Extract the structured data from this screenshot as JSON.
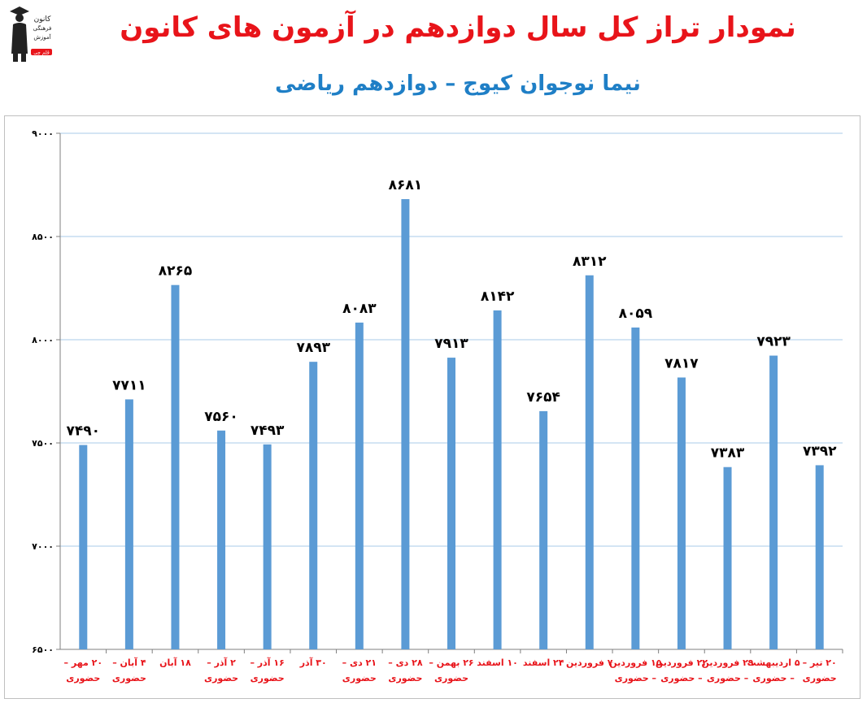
{
  "header": {
    "title": "نمودار تراز کل سال دوازدهم در آزمون های کانون",
    "subtitle": "نیما نوجوان کیوج – دوازدهم ریاضی"
  },
  "logo": {
    "icon": "graduate-figure-icon",
    "lines": [
      "کانون",
      "فرهنگی",
      "آموزش",
      "قلم چی"
    ]
  },
  "colors": {
    "title": "#e8141a",
    "subtitle": "#1f7fc6",
    "bar": "#5b9bd5",
    "category_label": "#e8141a",
    "gridline": "#a9cbe8",
    "axis": "#7f7f7f",
    "value_label": "#000000"
  },
  "chart_data": {
    "type": "bar",
    "title": "",
    "xlabel": "",
    "ylabel": "",
    "ylim": [
      6500,
      9000
    ],
    "yticks": [
      6500,
      7000,
      7500,
      8000,
      8500,
      9000
    ],
    "ytick_labels": [
      "۶۵۰۰",
      "۷۰۰۰",
      "۷۵۰۰",
      "۸۰۰۰",
      "۸۵۰۰",
      "۹۰۰۰"
    ],
    "grid": true,
    "categories": [
      [
        "۲۰ مهر –",
        "حضوری"
      ],
      [
        "۴ آبان –",
        "حضوری"
      ],
      [
        "۱۸ آبان"
      ],
      [
        "۲ آذر –",
        "حضوری"
      ],
      [
        "۱۶ آذر –",
        "حضوری"
      ],
      [
        "۳۰ آذر"
      ],
      [
        "۲۱ دی –",
        "حضوری"
      ],
      [
        "۲۸ دی –",
        "حضوری"
      ],
      [
        "۲۶ بهمن –",
        "حضوری"
      ],
      [
        "۱۰ اسفند"
      ],
      [
        "۲۴ اسفند"
      ],
      [
        "۷ فروردین"
      ],
      [
        "۱۵ فروردین",
        "– حضوری"
      ],
      [
        "۲۲ فروردین",
        "– حضوری"
      ],
      [
        "۲۹ فروردین",
        "– حضوری"
      ],
      [
        "۵ اردیبهشت",
        "– حضوری"
      ],
      [
        "۲۰ تیر –",
        "حضوری"
      ]
    ],
    "values": [
      7490,
      7711,
      8265,
      7560,
      7493,
      7893,
      8083,
      8681,
      7913,
      8142,
      7654,
      8312,
      8059,
      7817,
      7383,
      7923,
      7392
    ],
    "value_labels": [
      "۷۴۹۰",
      "۷۷۱۱",
      "۸۲۶۵",
      "۷۵۶۰",
      "۷۴۹۳",
      "۷۸۹۳",
      "۸۰۸۳",
      "۸۶۸۱",
      "۷۹۱۳",
      "۸۱۴۲",
      "۷۶۵۴",
      "۸۳۱۲",
      "۸۰۵۹",
      "۷۸۱۷",
      "۷۳۸۳",
      "۷۹۲۳",
      "۷۳۹۲"
    ]
  }
}
